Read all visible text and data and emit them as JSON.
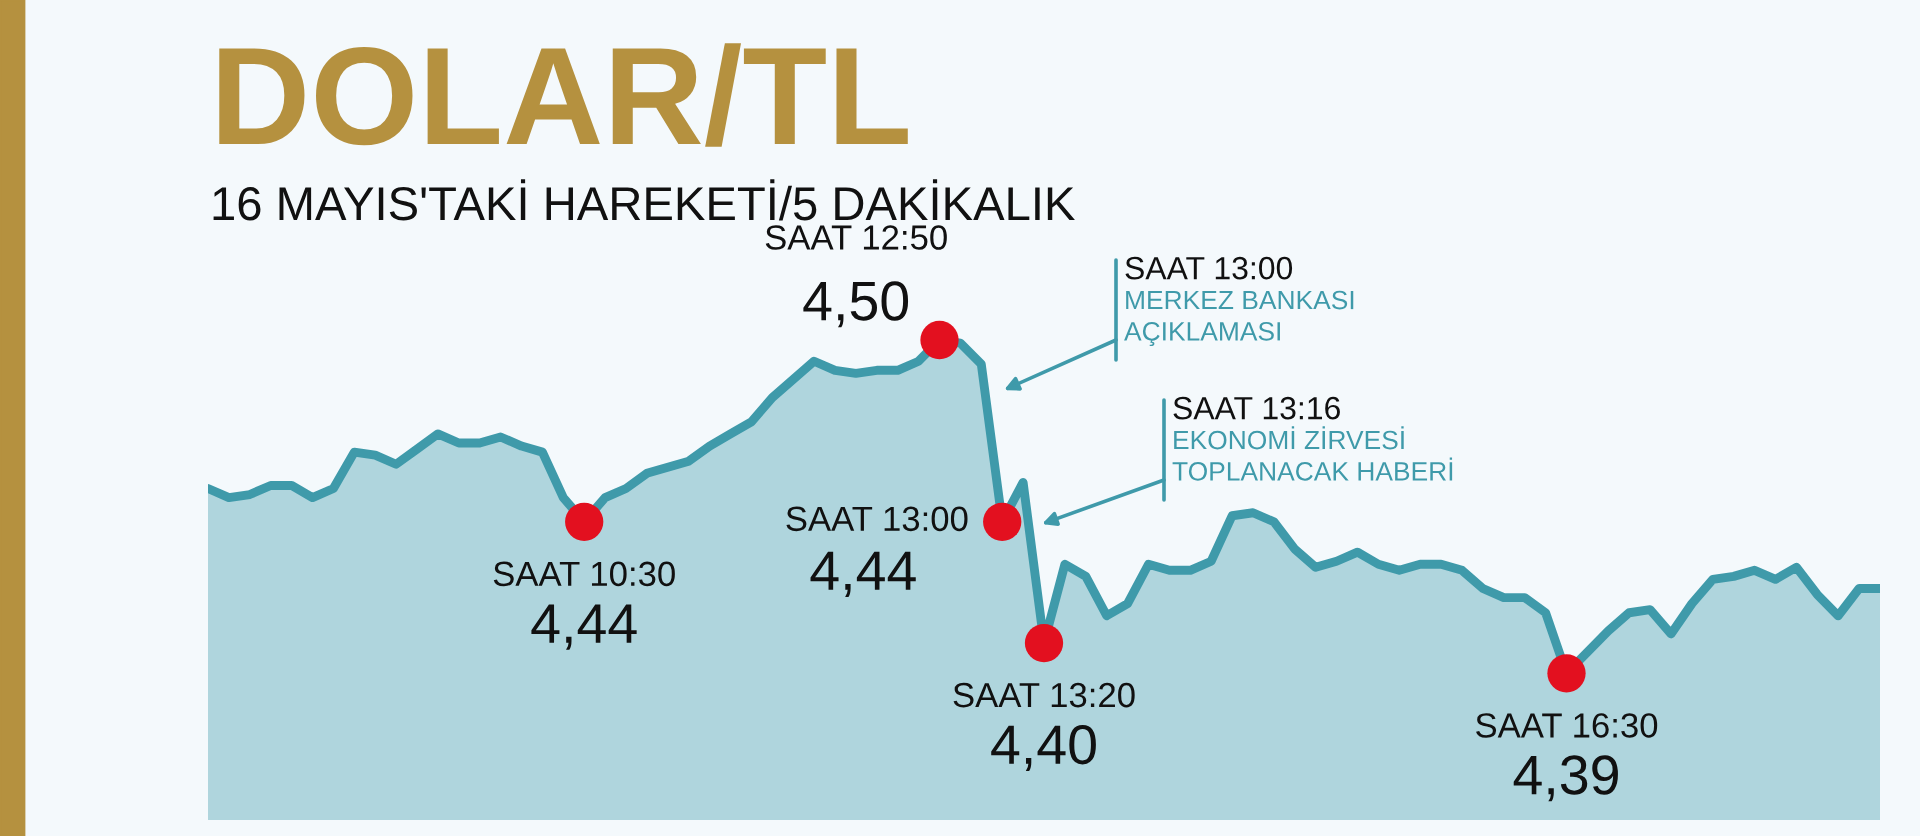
{
  "chart_data": {
    "type": "area",
    "title": "DOLAR/TL",
    "subtitle": "16 MAYIS'TAKİ HAREKETİ/5 DAKİKALIK",
    "color": "#3f9aaa",
    "categories": [
      null,
      null,
      null,
      null,
      null,
      null,
      null,
      null,
      null,
      null,
      null,
      null,
      null,
      null,
      null,
      null,
      null,
      null,
      null,
      null,
      null,
      null,
      null,
      null,
      null,
      null,
      null,
      null,
      null,
      null,
      null,
      null,
      null,
      null,
      null,
      null,
      null,
      null,
      null,
      null,
      null,
      null,
      null,
      null,
      null,
      null,
      null,
      null,
      null,
      null,
      null,
      null,
      null,
      null,
      null,
      null,
      null,
      null,
      null,
      null,
      null,
      null,
      null,
      null,
      null,
      null,
      null,
      null,
      null,
      null,
      null,
      null,
      null,
      null,
      null,
      null,
      null,
      null,
      null,
      null,
      null
    ],
    "values": [
      4.451,
      4.448,
      4.449,
      4.452,
      4.452,
      4.448,
      4.451,
      4.463,
      4.462,
      4.459,
      4.464,
      4.469,
      4.466,
      4.466,
      4.468,
      4.465,
      4.463,
      4.448,
      4.44,
      4.448,
      4.451,
      4.456,
      4.458,
      4.46,
      4.465,
      4.469,
      4.473,
      4.481,
      4.487,
      4.493,
      4.49,
      4.489,
      4.49,
      4.49,
      4.493,
      4.5,
      4.499,
      4.492,
      4.44,
      4.453,
      4.4,
      4.426,
      4.422,
      4.409,
      4.413,
      4.426,
      4.424,
      4.424,
      4.427,
      4.442,
      4.443,
      4.44,
      4.431,
      4.425,
      4.427,
      4.43,
      4.426,
      4.424,
      4.426,
      4.426,
      4.424,
      4.418,
      4.415,
      4.415,
      4.41,
      4.39,
      4.397,
      4.404,
      4.41,
      4.411,
      4.403,
      4.413,
      4.421,
      4.422,
      4.424,
      4.421,
      4.425,
      4.416,
      4.409,
      4.418,
      4.418
    ],
    "value_labels": [
      null,
      null,
      null,
      null,
      null,
      null,
      null,
      null,
      null,
      null,
      null,
      null,
      null,
      null,
      null,
      null,
      null,
      null,
      "4,44",
      null,
      null,
      null,
      null,
      null,
      null,
      null,
      null,
      null,
      null,
      null,
      null,
      null,
      null,
      null,
      null,
      "4,50",
      null,
      null,
      "4,44",
      null,
      "4,40",
      null,
      null,
      null,
      null,
      null,
      null,
      null,
      null,
      null,
      null,
      null,
      null,
      null,
      null,
      null,
      null,
      null,
      null,
      null,
      null,
      null,
      null,
      null,
      null,
      "4,39",
      null,
      null,
      null,
      null,
      null,
      null,
      null,
      null,
      null,
      null,
      null,
      null,
      null,
      null,
      null
    ],
    "annotations": [
      "SAAT 10:30",
      "SAAT 12:50",
      "SAAT 13:00",
      "SAAT 13:20",
      "SAAT 16:30",
      "SAAT 13:00\nMERKEZ BANKASI\nAÇIKLAMASI",
      "SAAT 13:16\nEKONOMİ ZİRVESİ\nTOPLANACAK HABERİ"
    ]
  }
}
